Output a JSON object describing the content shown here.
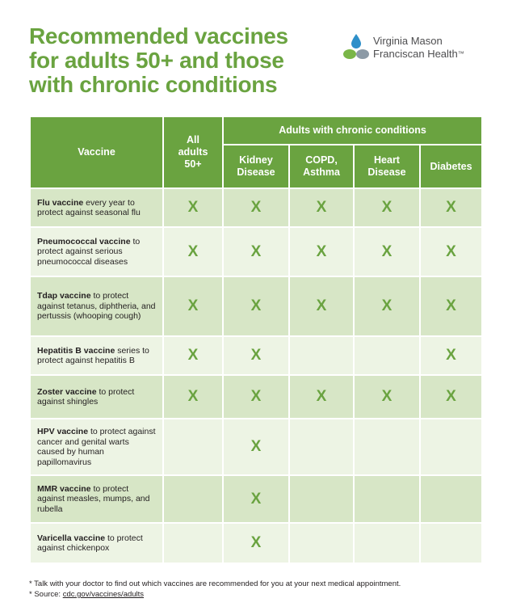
{
  "title": {
    "line1": "Recommended vaccines",
    "line2": "for adults 50+ and those",
    "line3": "with chronic conditions"
  },
  "logo": {
    "line1": "Virginia Mason",
    "line2": "Franciscan Health",
    "trademark": "™",
    "colors": {
      "blue": "#2e8fc9",
      "green": "#7ab648",
      "gray": "#8c9aa6"
    }
  },
  "table": {
    "header": {
      "vaccine": "Vaccine",
      "all_adults": "All adults 50+",
      "chronic_group": "Adults with chronic conditions",
      "conditions": [
        "Kidney Disease",
        "COPD, Asthma",
        "Heart Disease",
        "Diabetes"
      ]
    },
    "mark": "X",
    "rows": [
      {
        "name": "Flu vaccine",
        "desc": " every year to protect against seasonal flu",
        "marks": [
          1,
          1,
          1,
          1,
          1
        ]
      },
      {
        "name": "Pneumococcal vaccine",
        "desc": " to protect against serious pneumococcal diseases",
        "marks": [
          1,
          1,
          1,
          1,
          1
        ]
      },
      {
        "name": "Tdap vaccine",
        "desc": " to protect against tetanus, diphtheria, and pertussis (whooping cough)",
        "marks": [
          1,
          1,
          1,
          1,
          1
        ]
      },
      {
        "name": "Hepatitis B vaccine",
        "desc": " series to protect against hepatitis B",
        "marks": [
          1,
          1,
          0,
          0,
          1
        ]
      },
      {
        "name": "Zoster vaccine",
        "desc": " to protect against shingles",
        "marks": [
          1,
          1,
          1,
          1,
          1
        ]
      },
      {
        "name": "HPV vaccine",
        "desc": " to protect against cancer and genital warts caused by human papillomavirus",
        "marks": [
          0,
          1,
          0,
          0,
          0
        ]
      },
      {
        "name": "MMR vaccine",
        "desc": " to protect against measles, mumps, and rubella",
        "marks": [
          0,
          1,
          0,
          0,
          0
        ]
      },
      {
        "name": "Varicella vaccine",
        "desc": " to protect against chickenpox",
        "marks": [
          0,
          1,
          0,
          0,
          0
        ]
      }
    ]
  },
  "footer": {
    "note": "* Talk with your doctor to find out which vaccines are recommended for you at your next medical appointment.",
    "source_label": "* Source: ",
    "source_link": "cdc.gov/vaccines/adults"
  },
  "colors": {
    "accent_green": "#6aa340",
    "row_shade": "#d7e6c6",
    "row_light": "#edf4e4"
  }
}
